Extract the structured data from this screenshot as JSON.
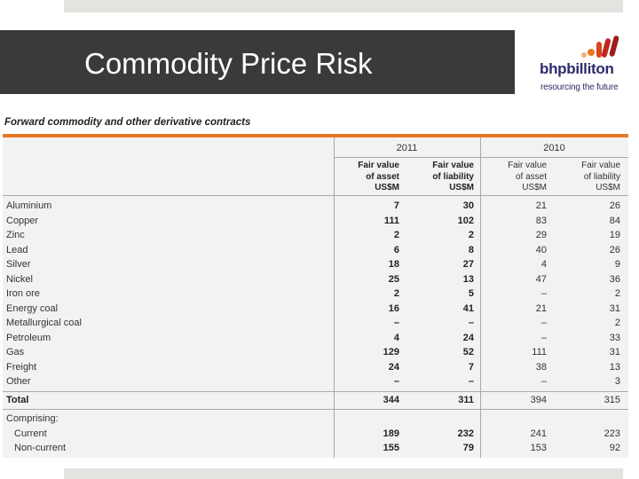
{
  "slide": {
    "title": "Commodity Price Risk"
  },
  "logo": {
    "name": "bhpbilliton",
    "tagline": "resourcing the future"
  },
  "table": {
    "heading": "Forward commodity and other derivative contracts",
    "years": [
      "2011",
      "2010"
    ],
    "column_headers": [
      [
        "Fair value",
        "of asset",
        "US$M"
      ],
      [
        "Fair value",
        "of liability",
        "US$M"
      ],
      [
        "Fair value",
        "of asset",
        "US$M"
      ],
      [
        "Fair value",
        "of liability",
        "US$M"
      ]
    ],
    "rows": [
      {
        "label": "Aluminium",
        "values": [
          "7",
          "30",
          "21",
          "26"
        ]
      },
      {
        "label": "Copper",
        "values": [
          "111",
          "102",
          "83",
          "84"
        ]
      },
      {
        "label": "Zinc",
        "values": [
          "2",
          "2",
          "29",
          "19"
        ]
      },
      {
        "label": "Lead",
        "values": [
          "6",
          "8",
          "40",
          "26"
        ]
      },
      {
        "label": "Silver",
        "values": [
          "18",
          "27",
          "4",
          "9"
        ]
      },
      {
        "label": "Nickel",
        "values": [
          "25",
          "13",
          "47",
          "36"
        ]
      },
      {
        "label": "Iron ore",
        "values": [
          "2",
          "5",
          "–",
          "2"
        ]
      },
      {
        "label": "Energy coal",
        "values": [
          "16",
          "41",
          "21",
          "31"
        ]
      },
      {
        "label": "Metallurgical coal",
        "values": [
          "–",
          "–",
          "–",
          "2"
        ]
      },
      {
        "label": "Petroleum",
        "values": [
          "4",
          "24",
          "–",
          "33"
        ]
      },
      {
        "label": "Gas",
        "values": [
          "129",
          "52",
          "111",
          "31"
        ]
      },
      {
        "label": "Freight",
        "values": [
          "24",
          "7",
          "38",
          "13"
        ]
      },
      {
        "label": "Other",
        "values": [
          "–",
          "–",
          "–",
          "3"
        ]
      }
    ],
    "total": {
      "label": "Total",
      "values": [
        "344",
        "311",
        "394",
        "315"
      ]
    },
    "comprising_label": "Comprising:",
    "breakdown": [
      {
        "label": "Current",
        "values": [
          "189",
          "232",
          "241",
          "223"
        ]
      },
      {
        "label": "Non-current",
        "values": [
          "155",
          "79",
          "153",
          "92"
        ]
      }
    ]
  },
  "colors": {
    "title_band": "#3a3a3a",
    "accent_rule": "#e87722",
    "table_background": "#f2f2f2",
    "logo_text": "#2b2b6e",
    "logo_dots": "#e87722"
  }
}
